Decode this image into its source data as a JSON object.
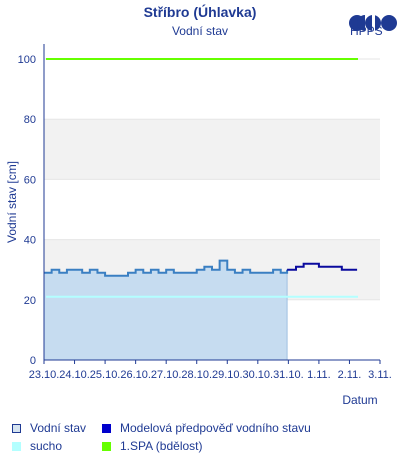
{
  "header": {
    "title": "Stříbro (Úhlavka)",
    "subtitle": "Vodní stav",
    "logo_text": "HPPS"
  },
  "legend": {
    "items": [
      {
        "label": "Vodní stav",
        "color": "#b8cfe8",
        "border": "#1f3a93"
      },
      {
        "label": "Modelová předpověď vodního stavu",
        "color": "#0000cc"
      },
      {
        "label": "sucho",
        "color": "#b3ffff"
      },
      {
        "label": "1.SPA (bdělost)",
        "color": "#66ff00"
      }
    ]
  },
  "colors": {
    "observed_line": "#3a7fc2",
    "observed_fill": "#c6dcf0",
    "forecast_line": "#0a0a9e",
    "drought_line": "#b3ffff",
    "spa1_line": "#66ff00",
    "band_fill": "#f2f2f2",
    "text": "#1f3a93"
  },
  "chart_data": {
    "type": "line",
    "title": "Stříbro (Úhlavka)",
    "subtitle": "Vodní stav",
    "xlabel": "Datum",
    "ylabel": "Vodní stav [cm]",
    "x_unit": "day",
    "xlim": [
      "23.10.",
      "3.11."
    ],
    "x_ticks": [
      "23.10.",
      "24.10.",
      "25.10.",
      "26.10.",
      "27.10.",
      "28.10.",
      "29.10.",
      "30.10.",
      "31.10.",
      "1.11.",
      "2.11.",
      "3.11."
    ],
    "ylim": [
      0,
      105
    ],
    "y_ticks": [
      0,
      20,
      40,
      60,
      80,
      100
    ],
    "grid": "horizontal bands",
    "thresholds": [
      {
        "name": "1.SPA (bdělost)",
        "value": 100
      },
      {
        "name": "sucho",
        "value": 21
      }
    ],
    "series": [
      {
        "name": "Vodní stav",
        "style": "filled-step",
        "points": [
          [
            "23.10. 00:00",
            29
          ],
          [
            "23.10. 06:00",
            30
          ],
          [
            "23.10. 12:00",
            29
          ],
          [
            "23.10. 18:00",
            30
          ],
          [
            "24.10. 00:00",
            30
          ],
          [
            "24.10. 06:00",
            29
          ],
          [
            "24.10. 12:00",
            30
          ],
          [
            "24.10. 18:00",
            29
          ],
          [
            "25.10. 00:00",
            28
          ],
          [
            "25.10. 06:00",
            28
          ],
          [
            "25.10. 12:00",
            28
          ],
          [
            "25.10. 18:00",
            29
          ],
          [
            "26.10. 00:00",
            30
          ],
          [
            "26.10. 06:00",
            29
          ],
          [
            "26.10. 12:00",
            30
          ],
          [
            "26.10. 18:00",
            29
          ],
          [
            "27.10. 00:00",
            30
          ],
          [
            "27.10. 06:00",
            29
          ],
          [
            "27.10. 12:00",
            29
          ],
          [
            "27.10. 18:00",
            29
          ],
          [
            "28.10. 00:00",
            30
          ],
          [
            "28.10. 06:00",
            31
          ],
          [
            "28.10. 12:00",
            30
          ],
          [
            "28.10. 18:00",
            33
          ],
          [
            "29.10. 00:00",
            30
          ],
          [
            "29.10. 06:00",
            29
          ],
          [
            "29.10. 12:00",
            30
          ],
          [
            "29.10. 18:00",
            29
          ],
          [
            "30.10. 00:00",
            29
          ],
          [
            "30.10. 06:00",
            29
          ],
          [
            "30.10. 12:00",
            30
          ],
          [
            "30.10. 18:00",
            29
          ],
          [
            "30.10. 23:00",
            30
          ]
        ]
      },
      {
        "name": "Modelová předpověď vodního stavu",
        "style": "step",
        "points": [
          [
            "30.10. 23:00",
            30
          ],
          [
            "31.10. 06:00",
            31
          ],
          [
            "31.10. 12:00",
            32
          ],
          [
            "1.11. 00:00",
            31
          ],
          [
            "1.11. 12:00",
            31
          ],
          [
            "1.11. 18:00",
            30
          ],
          [
            "2.11. 00:00",
            30
          ],
          [
            "2.11. 06:00",
            30
          ]
        ]
      }
    ]
  }
}
